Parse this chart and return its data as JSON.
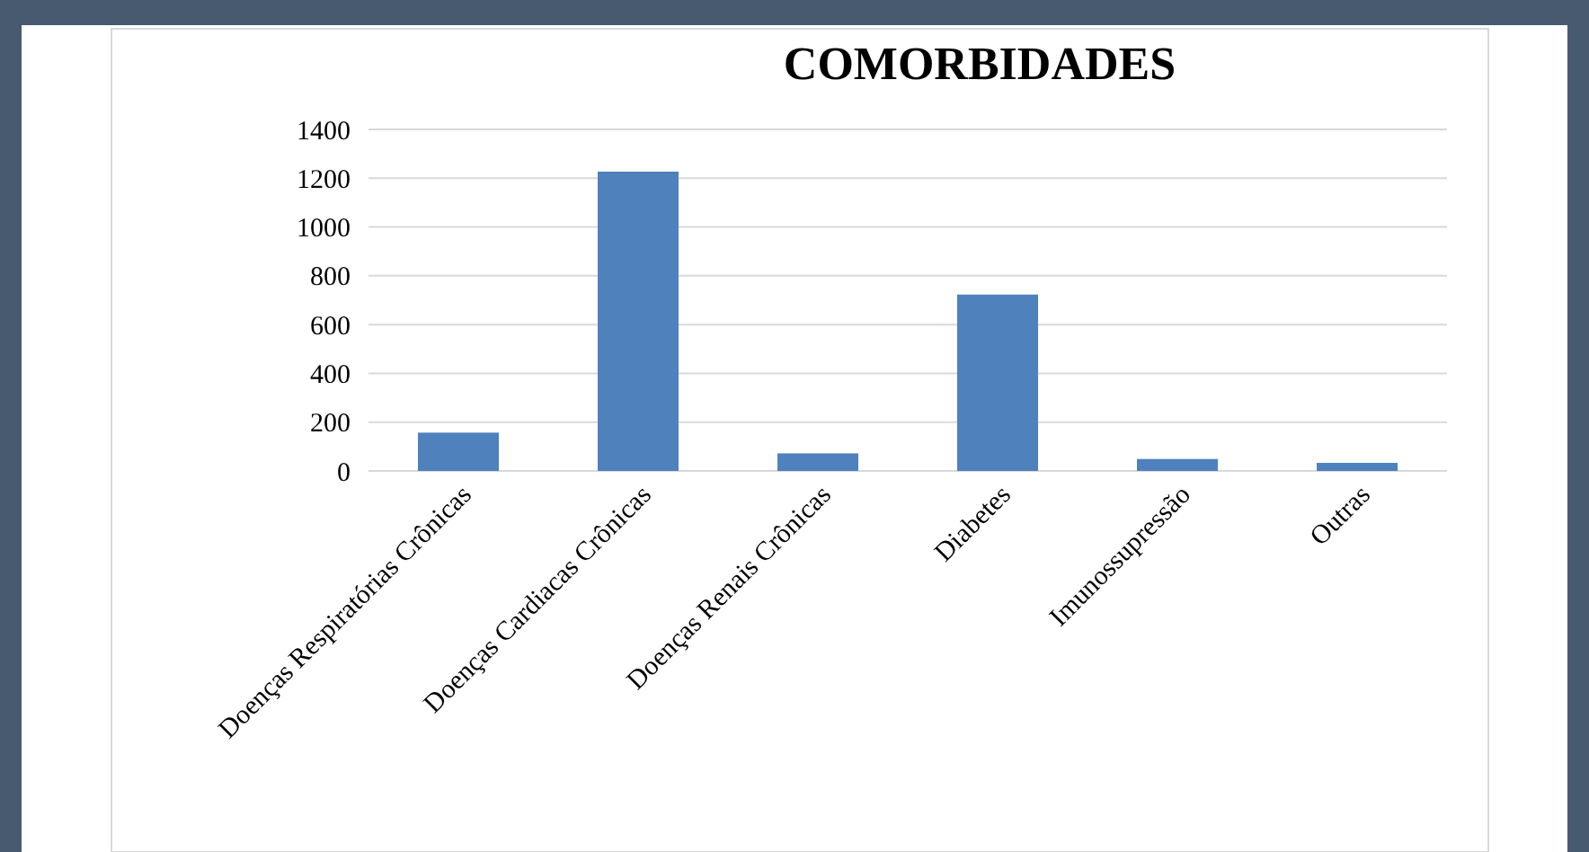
{
  "chart_data": {
    "type": "bar",
    "title": "COMORBIDADES",
    "categories": [
      "Doenças Respiratórias Crônicas",
      "Doenças Cardiacas Crônicas",
      "Doenças Renais Crônicas",
      "Diabetes",
      "Imunossupressão",
      "Outras"
    ],
    "values": [
      157,
      1227,
      72,
      723,
      49,
      33
    ],
    "color": "#4f81bd",
    "ylim": [
      0,
      1400
    ],
    "yticks": [
      0,
      200,
      400,
      600,
      800,
      1000,
      1200,
      1400
    ],
    "grid": "y"
  }
}
